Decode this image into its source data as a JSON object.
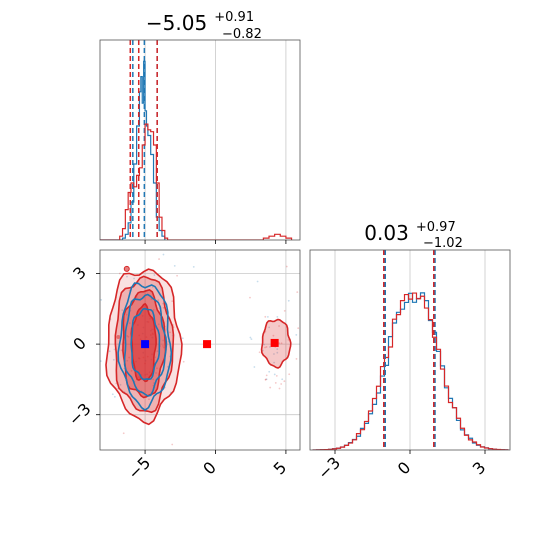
{
  "chart_data": [
    {
      "type": "histogram",
      "panel": "top-left marginal",
      "title": {
        "value": "−5.05",
        "sup": "+0.91",
        "sub": "−0.82"
      },
      "xlim": [
        -8.2,
        6.0
      ],
      "grid": true,
      "series": [
        {
          "color": "#1f77b4",
          "quantile_lines": [
            -5.87,
            -5.05,
            -4.14
          ],
          "bins": [
            [
              -8.2,
              0
            ],
            [
              -6.6,
              0.01
            ],
            [
              -6.4,
              0.03
            ],
            [
              -6.2,
              0.09
            ],
            [
              -6.0,
              0.2
            ],
            [
              -5.8,
              0.4
            ],
            [
              -5.6,
              0.6
            ],
            [
              -5.4,
              0.78
            ],
            [
              -5.3,
              0.86
            ],
            [
              -5.2,
              0.72
            ],
            [
              -5.1,
              0.94
            ],
            [
              -5.0,
              0.68
            ],
            [
              -4.9,
              0.6
            ],
            [
              -4.8,
              0.55
            ],
            [
              -4.6,
              0.45
            ],
            [
              -4.4,
              0.3
            ],
            [
              -4.2,
              0.12
            ],
            [
              -4.0,
              0.05
            ],
            [
              -3.8,
              0.02
            ],
            [
              -3.6,
              0
            ]
          ]
        },
        {
          "color": "#d62728",
          "quantile_lines": [
            -6.05,
            -5.45,
            -4.14
          ],
          "bins": [
            [
              -8.2,
              0
            ],
            [
              -6.8,
              0.02
            ],
            [
              -6.6,
              0.06
            ],
            [
              -6.4,
              0.16
            ],
            [
              -6.2,
              0.25
            ],
            [
              -6.0,
              0.3
            ],
            [
              -5.8,
              0.28
            ],
            [
              -5.6,
              0.34
            ],
            [
              -5.4,
              0.38
            ],
            [
              -5.2,
              0.5
            ],
            [
              -5.0,
              0.61
            ],
            [
              -4.8,
              0.58
            ],
            [
              -4.6,
              0.57
            ],
            [
              -4.4,
              0.5
            ],
            [
              -4.2,
              0.3
            ],
            [
              -4.0,
              0.12
            ],
            [
              -3.8,
              0.05
            ],
            [
              -3.6,
              0.01
            ],
            [
              -3.4,
              0
            ],
            [
              3.4,
              0.01
            ],
            [
              3.8,
              0.02
            ],
            [
              4.2,
              0.03
            ],
            [
              4.6,
              0.02
            ],
            [
              5.0,
              0.01
            ],
            [
              5.4,
              0
            ]
          ]
        }
      ]
    },
    {
      "type": "contour",
      "panel": "bottom-left joint",
      "xlim": [
        -8.2,
        6.0
      ],
      "ylim": [
        -4.5,
        4.0
      ],
      "xticks": [
        -5,
        0,
        5
      ],
      "xtick_labels": [
        "−5",
        "0",
        "5"
      ],
      "yticks": [
        -3,
        0,
        3
      ],
      "ytick_labels": [
        "−3",
        "0",
        "3"
      ],
      "grid": true,
      "series": [
        {
          "color": "#1f77b4",
          "center": [
            -5.0,
            0.0
          ],
          "levels": [
            {
              "rx": 1.0,
              "ry": 1.5
            },
            {
              "rx": 1.45,
              "ry": 2.1
            },
            {
              "rx": 1.8,
              "ry": 2.6
            }
          ]
        },
        {
          "color": "#d62728",
          "center": [
            -5.1,
            0.0
          ],
          "levels": [
            {
              "rx": 0.85,
              "ry": 1.6
            },
            {
              "rx": 1.5,
              "ry": 2.25
            },
            {
              "rx": 2.05,
              "ry": 2.85
            },
            {
              "rx": 2.6,
              "ry": 3.2
            }
          ],
          "secondary_mode": {
            "center": [
              4.3,
              0.05
            ],
            "rx": 1.0,
            "ry": 1.0
          },
          "outlier": {
            "x": -6.3,
            "y": 3.2
          }
        }
      ],
      "markers": [
        {
          "x": -5.0,
          "y": 0.0,
          "color": "#0000ff"
        },
        {
          "x": -0.6,
          "y": 0.0,
          "color": "#ff0000"
        },
        {
          "x": 4.2,
          "y": 0.05,
          "color": "#ff0000"
        }
      ]
    },
    {
      "type": "histogram",
      "panel": "bottom-right marginal",
      "title": {
        "value": "0.03",
        "sup": "+0.97",
        "sub": "−1.02"
      },
      "xlim": [
        -4.0,
        4.0
      ],
      "xticks": [
        -3,
        0,
        3
      ],
      "xtick_labels": [
        "−3",
        "0",
        "3"
      ],
      "grid": true,
      "series": [
        {
          "color": "#1f77b4",
          "quantile_lines": [
            -0.99,
            0.03,
            1.0
          ]
        },
        {
          "color": "#d62728",
          "quantile_lines": [
            -1.05,
            0.03,
            0.95
          ]
        }
      ]
    }
  ]
}
